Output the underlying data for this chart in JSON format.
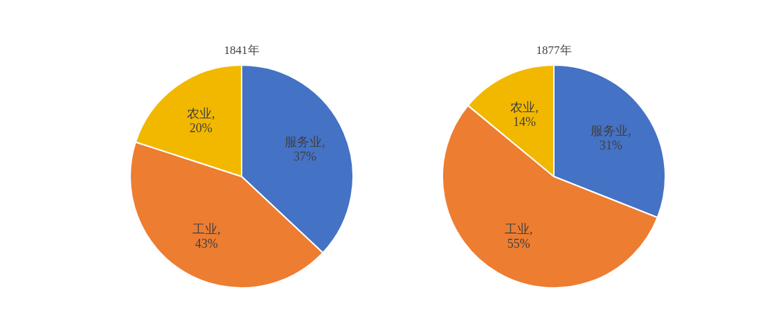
{
  "chart_data": [
    {
      "type": "pie",
      "title": "1841年",
      "categories": [
        "服务业",
        "工业",
        "农业"
      ],
      "values": [
        37,
        43,
        20
      ],
      "value_labels": [
        ",\n37%",
        ",\n43%",
        ",\n20%"
      ],
      "colors": [
        "#4472c4",
        "#ed7d31",
        "#f2b800"
      ]
    },
    {
      "type": "pie",
      "title": "1877年",
      "categories": [
        "服务业",
        "工业",
        "农业"
      ],
      "values": [
        31,
        55,
        14
      ],
      "value_labels": [
        ",\n31%",
        ",\n55%",
        ",\n14%"
      ],
      "colors": [
        "#4472c4",
        "#ed7d31",
        "#f2b800"
      ]
    }
  ]
}
